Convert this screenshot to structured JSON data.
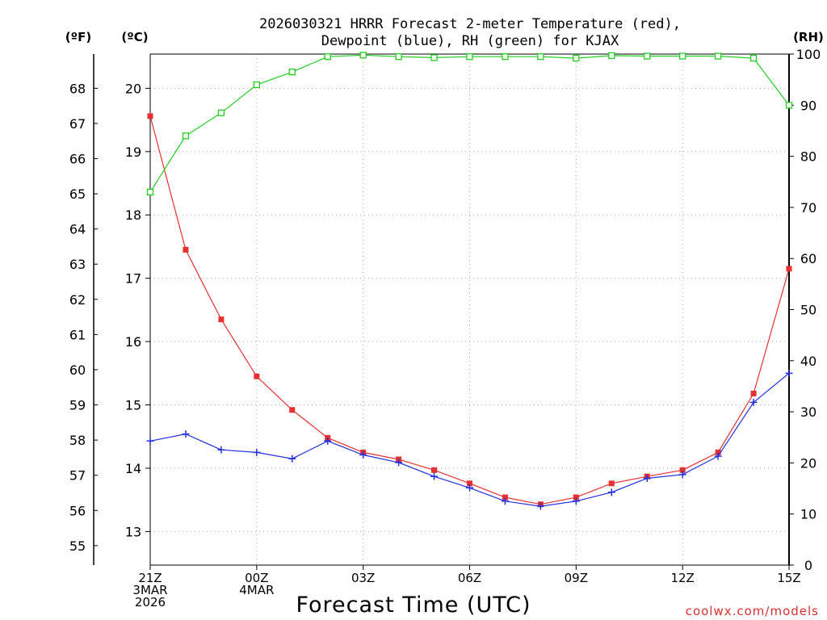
{
  "chart_data": {
    "type": "line",
    "title_line1": "2026030321 HRRR Forecast 2-meter Temperature (red),",
    "title_line2": "Dewpoint (blue), RH (green) for KJAX",
    "xlabel": "Forecast Time (UTC)",
    "credit": "coolwx.com/models",
    "units": {
      "fahrenheit": "(ºF)",
      "celsius": "(ºC)",
      "rh": "(RH)"
    },
    "x": [
      0,
      1,
      2,
      3,
      4,
      5,
      6,
      7,
      8,
      9,
      10,
      11,
      12,
      13,
      14,
      15,
      16,
      17,
      18
    ],
    "x_ticks": [
      {
        "x": 0,
        "lines": [
          "21Z",
          "3MAR",
          "2026"
        ]
      },
      {
        "x": 3,
        "lines": [
          "00Z",
          "4MAR"
        ]
      },
      {
        "x": 6,
        "lines": [
          "03Z"
        ]
      },
      {
        "x": 9,
        "lines": [
          "06Z"
        ]
      },
      {
        "x": 12,
        "lines": [
          "09Z"
        ]
      },
      {
        "x": 15,
        "lines": [
          "12Z"
        ]
      },
      {
        "x": 18,
        "lines": [
          "15Z"
        ]
      }
    ],
    "celsius_range": [
      12.47,
      20.54
    ],
    "celsius_ticks": [
      13,
      14,
      15,
      16,
      17,
      18,
      19,
      20
    ],
    "fahrenheit_ticks": [
      55,
      56,
      57,
      58,
      59,
      60,
      61,
      62,
      63,
      64,
      65,
      66,
      67,
      68
    ],
    "rh_range": [
      0,
      100
    ],
    "rh_ticks": [
      0,
      10,
      20,
      30,
      40,
      50,
      60,
      70,
      80,
      90,
      100
    ],
    "grid": true,
    "series": [
      {
        "name": "Temperature",
        "axis": "celsius",
        "color": "#e83030",
        "marker": "filled-square",
        "values": [
          19.56,
          17.45,
          16.35,
          15.45,
          14.92,
          14.48,
          14.25,
          14.14,
          13.97,
          13.76,
          13.54,
          13.43,
          13.54,
          13.76,
          13.87,
          13.97,
          14.25,
          15.18,
          17.15
        ]
      },
      {
        "name": "Dewpoint",
        "axis": "celsius",
        "color": "#2030e0",
        "marker": "plus",
        "values": [
          14.43,
          14.54,
          14.29,
          14.25,
          14.15,
          14.43,
          14.21,
          14.09,
          13.87,
          13.69,
          13.48,
          13.4,
          13.48,
          13.62,
          13.84,
          13.9,
          14.19,
          15.04,
          15.5
        ]
      },
      {
        "name": "RH",
        "axis": "rh",
        "color": "#20d020",
        "marker": "open-square",
        "values": [
          73,
          84,
          88.5,
          94,
          96.5,
          99.5,
          99.8,
          99.5,
          99.3,
          99.5,
          99.5,
          99.5,
          99.2,
          99.7,
          99.6,
          99.6,
          99.6,
          99.2,
          90
        ]
      }
    ]
  }
}
